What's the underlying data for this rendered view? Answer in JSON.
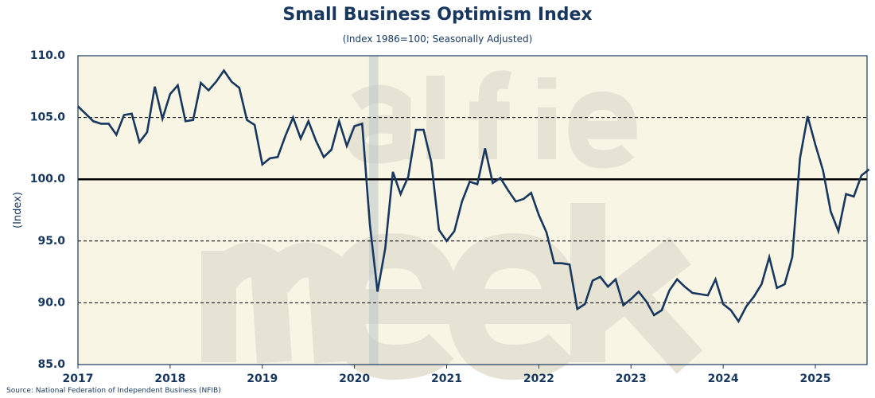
{
  "chart_data": {
    "type": "line",
    "title": "Small Business Optimism Index",
    "subtitle": "(Index 1986=100; Seasonally Adjusted)",
    "ylabel": "(Index)",
    "xlabel": "",
    "ylim": [
      85,
      110
    ],
    "yticks": [
      "85.0",
      "90.0",
      "95.0",
      "100.0",
      "105.0",
      "110.0"
    ],
    "xticks": [
      "2017",
      "2018",
      "2019",
      "2020",
      "2021",
      "2022",
      "2023",
      "2024",
      "2025"
    ],
    "x_start": "2017-01",
    "frequency": "monthly",
    "reference_line": 100,
    "dashed_gridlines": [
      90,
      95,
      105
    ],
    "recession_shading": [
      "2020-03",
      "2020-04"
    ],
    "watermark": "alfie meek",
    "series": [
      {
        "name": "Small Business Optimism Index",
        "color": "#17375e",
        "values": [
          105.9,
          105.3,
          104.7,
          104.5,
          104.5,
          103.6,
          105.2,
          105.3,
          103.0,
          103.8,
          107.5,
          104.9,
          106.9,
          107.6,
          104.7,
          104.8,
          107.8,
          107.2,
          107.9,
          108.8,
          107.9,
          107.4,
          104.8,
          104.4,
          101.2,
          101.7,
          101.8,
          103.5,
          105.0,
          103.3,
          104.7,
          103.1,
          101.8,
          102.4,
          104.7,
          102.7,
          104.3,
          104.5,
          96.4,
          90.9,
          94.4,
          100.6,
          98.8,
          100.2,
          104.0,
          104.0,
          101.4,
          95.9,
          95.0,
          95.8,
          98.2,
          99.8,
          99.6,
          102.5,
          99.7,
          100.1,
          99.1,
          98.2,
          98.4,
          98.9,
          97.1,
          95.7,
          93.2,
          93.2,
          93.1,
          89.5,
          89.9,
          91.8,
          92.1,
          91.3,
          91.9,
          89.8,
          90.3,
          90.9,
          90.1,
          89.0,
          89.4,
          91.0,
          91.9,
          91.3,
          90.8,
          90.7,
          90.6,
          91.9,
          89.9,
          89.4,
          88.5,
          89.7,
          90.5,
          91.5,
          93.7,
          91.2,
          91.5,
          93.7,
          101.7,
          105.1,
          102.8,
          100.7,
          97.4,
          95.8,
          98.8,
          98.6,
          100.3,
          100.8
        ]
      }
    ],
    "source": "Source: National Federation of Independent Business (NFIB)"
  }
}
